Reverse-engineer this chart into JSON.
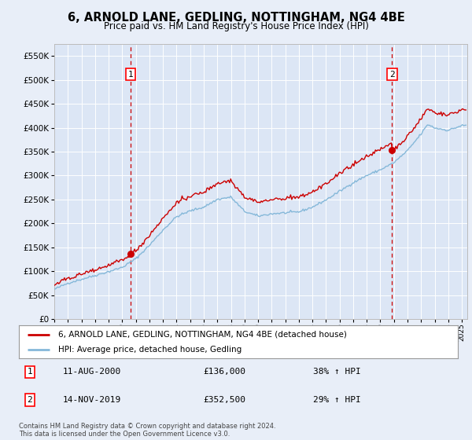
{
  "title": "6, ARNOLD LANE, GEDLING, NOTTINGHAM, NG4 4BE",
  "subtitle": "Price paid vs. HM Land Registry's House Price Index (HPI)",
  "background_color": "#e8eef8",
  "plot_bg_color": "#dce6f5",
  "grid_color": "#ffffff",
  "ylim": [
    0,
    575000
  ],
  "yticks": [
    0,
    50000,
    100000,
    150000,
    200000,
    250000,
    300000,
    350000,
    400000,
    450000,
    500000,
    550000
  ],
  "sale1_x": 2000.6,
  "sale1_price": 136000,
  "sale2_x": 2019.87,
  "sale2_price": 352500,
  "hpi_line_color": "#85b8d9",
  "price_line_color": "#cc0000",
  "dashed_line_color": "#cc0000",
  "marker_color": "#cc0000",
  "legend_house_label": "6, ARNOLD LANE, GEDLING, NOTTINGHAM, NG4 4BE (detached house)",
  "legend_hpi_label": "HPI: Average price, detached house, Gedling",
  "annotation1_text": "11-AUG-2000",
  "annotation1_price": "£136,000",
  "annotation1_pct": "38% ↑ HPI",
  "annotation2_text": "14-NOV-2019",
  "annotation2_price": "£352,500",
  "annotation2_pct": "29% ↑ HPI",
  "footer": "Contains HM Land Registry data © Crown copyright and database right 2024.\nThis data is licensed under the Open Government Licence v3.0.",
  "xmin": 1995.0,
  "xmax": 2025.4,
  "xticks": [
    1995,
    1996,
    1997,
    1998,
    1999,
    2000,
    2001,
    2002,
    2003,
    2004,
    2005,
    2006,
    2007,
    2008,
    2009,
    2010,
    2011,
    2012,
    2013,
    2014,
    2015,
    2016,
    2017,
    2018,
    2019,
    2020,
    2021,
    2022,
    2023,
    2024,
    2025
  ]
}
